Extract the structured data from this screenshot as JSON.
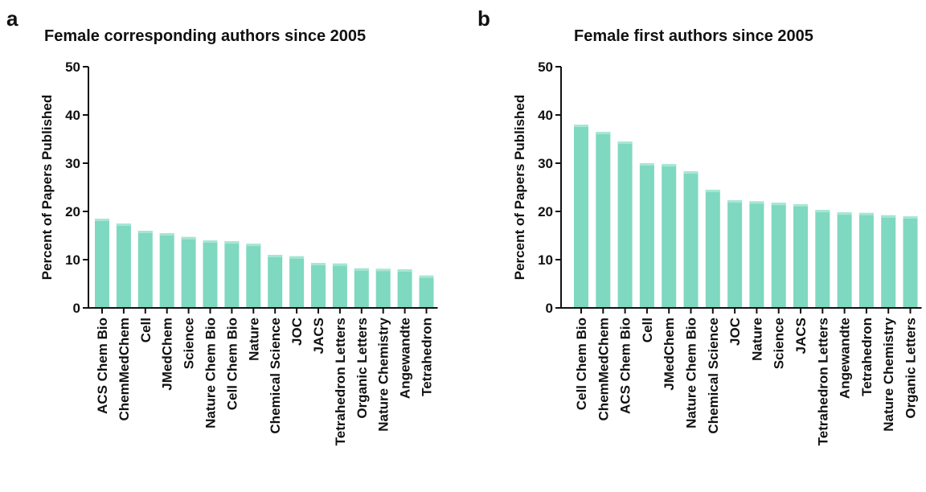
{
  "colors": {
    "bar": "#7fd8c0",
    "bar_highlight": "#a6e6d4",
    "axis": "#111111"
  },
  "chart_data": [
    {
      "panel_label": "a",
      "type": "bar",
      "title": "Female corresponding authors since 2005",
      "xlabel": "",
      "ylabel": "Percent of Papers Published",
      "ylim": [
        0,
        50
      ],
      "yticks": [
        0,
        10,
        20,
        30,
        40,
        50
      ],
      "categories": [
        "ACS Chem Bio",
        "ChemMedChem",
        "Cell",
        "JMedChem",
        "Science",
        "Nature Chem Bio",
        "Cell Chem Bio",
        "Nature",
        "Chemical Science",
        "JOC",
        "JACS",
        "Tetrahedron Letters",
        "Organic Letters",
        "Nature Chemistry",
        "Angewandte",
        "Tetrahedron"
      ],
      "values": [
        18.5,
        17.5,
        16,
        15.5,
        14.7,
        14,
        13.8,
        13.3,
        11,
        10.7,
        9.3,
        9.2,
        8.2,
        8.1,
        8.0,
        6.7
      ]
    },
    {
      "panel_label": "b",
      "type": "bar",
      "title": "Female first authors since 2005",
      "xlabel": "",
      "ylabel": "Percent of Papers Published",
      "ylim": [
        0,
        50
      ],
      "yticks": [
        0,
        10,
        20,
        30,
        40,
        50
      ],
      "categories": [
        "Cell Chem Bio",
        "ChemMedChem",
        "ACS Chem Bio",
        "Cell",
        "JMedChem",
        "Nature Chem Bio",
        "Chemical Science",
        "JOC",
        "Nature",
        "Science",
        "JACS",
        "Tetrahedron Letters",
        "Angewandte",
        "Tetrahedron",
        "Nature Chemistry",
        "Organic Letters"
      ],
      "values": [
        38,
        36.5,
        34.5,
        30,
        29.8,
        28.3,
        24.5,
        22.3,
        22.1,
        21.8,
        21.5,
        20.3,
        19.8,
        19.7,
        19.2,
        19.0
      ]
    }
  ]
}
